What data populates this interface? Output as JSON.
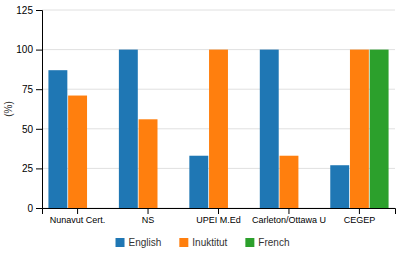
{
  "chart_data": {
    "type": "bar",
    "categories": [
      "Nunavut Cert.",
      "NS",
      "UPEI M.Ed",
      "Carleton/Ottawa U",
      "CEGEP"
    ],
    "series": [
      {
        "name": "English",
        "values": [
          87,
          100,
          33,
          100,
          27
        ]
      },
      {
        "name": "Inuktitut",
        "values": [
          71,
          56,
          100,
          33,
          100
        ]
      },
      {
        "name": "French",
        "values": [
          0,
          0,
          0,
          0,
          100
        ]
      }
    ],
    "ylabel": "(%)",
    "ylim": [
      0,
      125
    ],
    "yticks": [
      0,
      25,
      50,
      75,
      100,
      125
    ],
    "grid": true,
    "legend": "bottom"
  }
}
